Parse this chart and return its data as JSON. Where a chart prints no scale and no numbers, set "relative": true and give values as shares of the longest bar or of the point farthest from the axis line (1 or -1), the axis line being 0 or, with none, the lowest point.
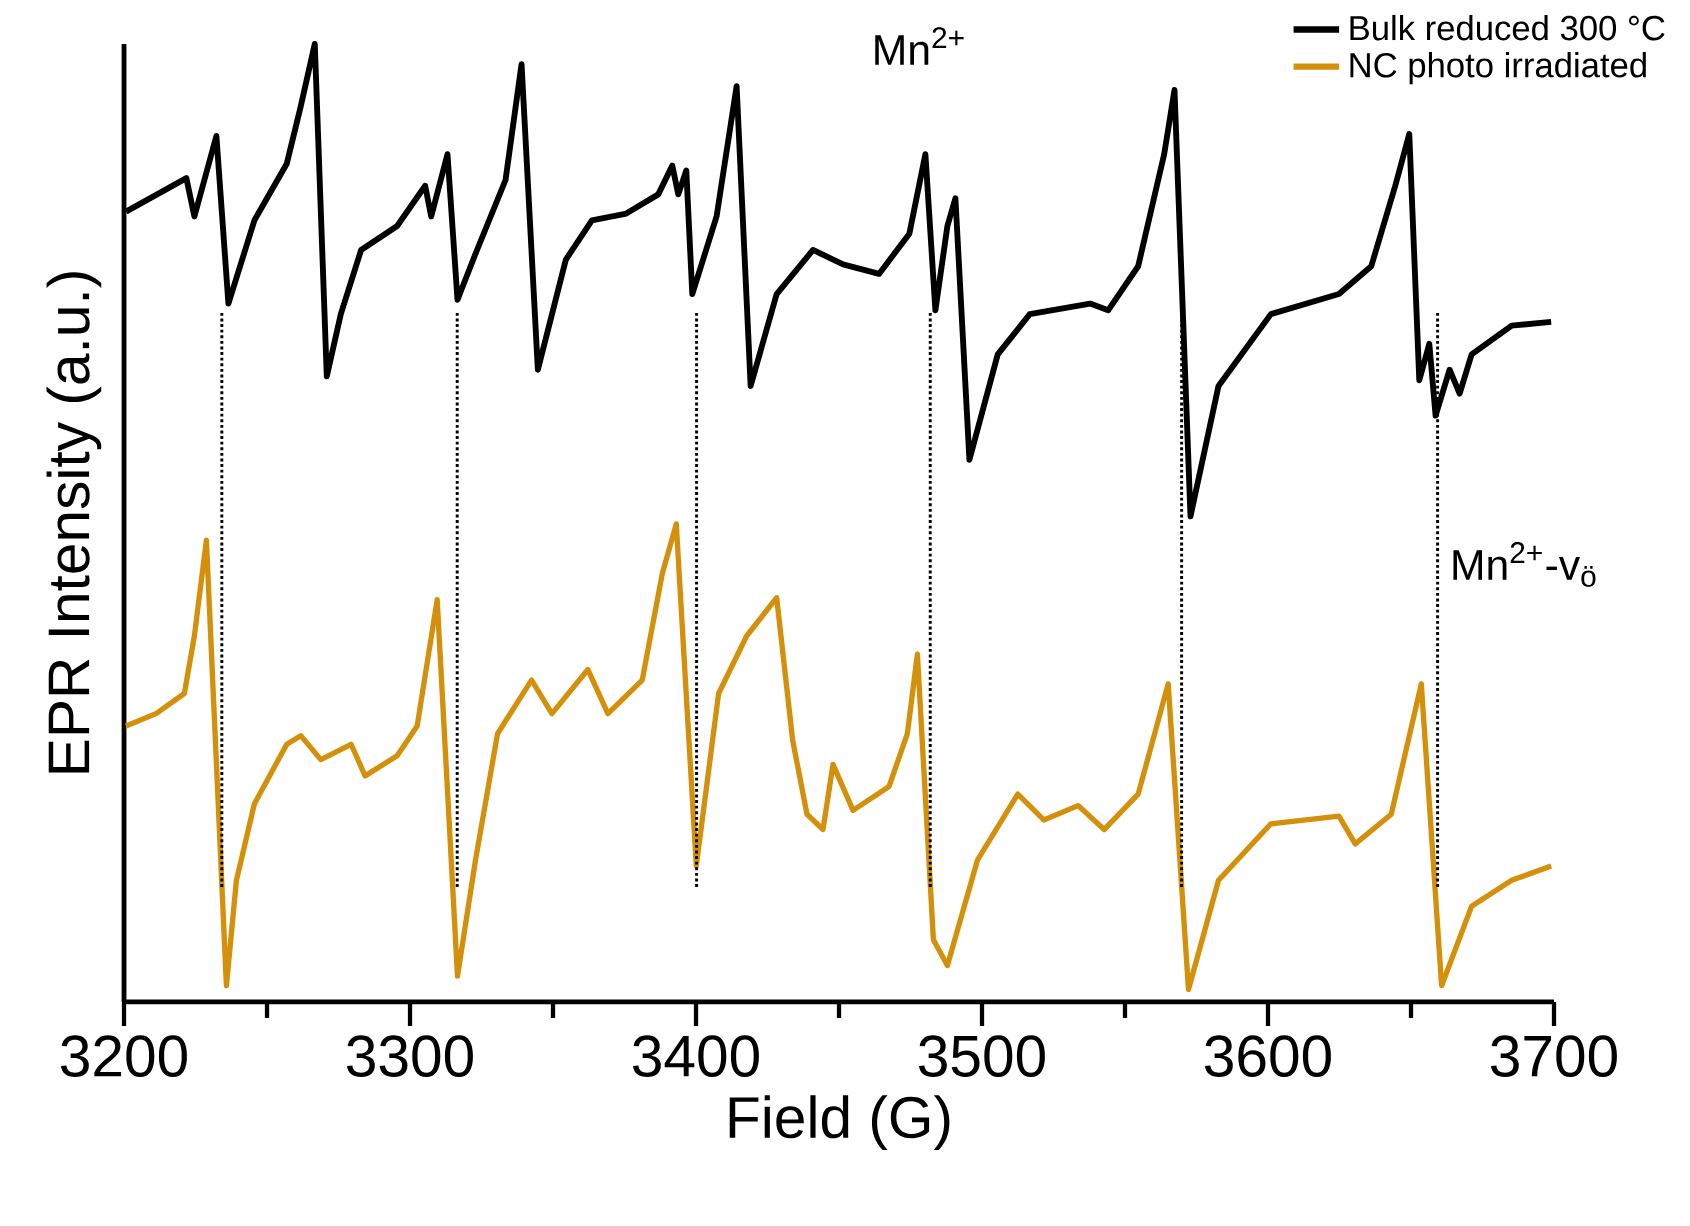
{
  "chart_data": {
    "type": "line",
    "relative": true,
    "xlabel": "Field (G)",
    "ylabel": "EPR Intensity (a.u.)",
    "xlim": [
      3200,
      3700
    ],
    "xticks": [
      3200,
      {
        "value": 3250,
        "label": null
      },
      3300,
      {
        "value": 3350,
        "label": null
      },
      3400,
      {
        "value": 3450,
        "label": null
      },
      3500,
      {
        "value": 3550,
        "label": null
      },
      3600,
      {
        "value": 3650,
        "label": null
      },
      3700
    ],
    "legend": "top right",
    "marker": "none",
    "line_style": "solid",
    "grid": false,
    "series": [
      {
        "name": "Bulk reduced 300 °C",
        "color": "#000000",
        "x": [
          3200.7,
          3221.8,
          3224.6,
          3232.3,
          3236.5,
          3245.6,
          3256.9,
          3261.8,
          3266.7,
          3270.9,
          3275.8,
          3282.9,
          3295.5,
          3305.3,
          3307.4,
          3313.1,
          3316.6,
          3322.9,
          3333.4,
          3339.0,
          3344.7,
          3354.5,
          3363.6,
          3375.6,
          3386.8,
          3391.7,
          3393.8,
          3396.6,
          3398.7,
          3407.2,
          3414.2,
          3419.1,
          3428.2,
          3440.9,
          3451.4,
          3464.0,
          3474.6,
          3480.2,
          3483.7,
          3487.9,
          3490.7,
          3495.6,
          3505.5,
          3516.7,
          3537.8,
          3544.1,
          3554.6,
          3563.7,
          3567.3,
          3572.9,
          3582.7,
          3601.0,
          3624.8,
          3636.1,
          3644.5,
          3649.4,
          3652.9,
          3656.4,
          3658.6,
          3663.5,
          3667.0,
          3671.2,
          3685.2,
          3699.0
        ],
        "values": [
          0.825,
          0.86,
          0.82,
          0.904,
          0.729,
          0.816,
          0.875,
          0.935,
          1,
          0.653,
          0.718,
          0.785,
          0.81,
          0.852,
          0.82,
          0.885,
          0.733,
          0.781,
          0.858,
          0.979,
          0.66,
          0.775,
          0.816,
          0.823,
          0.843,
          0.873,
          0.843,
          0.868,
          0.739,
          0.82,
          0.956,
          0.643,
          0.739,
          0.785,
          0.77,
          0.76,
          0.802,
          0.885,
          0.722,
          0.81,
          0.839,
          0.566,
          0.676,
          0.718,
          0.729,
          0.722,
          0.768,
          0.885,
          0.952,
          0.507,
          0.643,
          0.718,
          0.739,
          0.768,
          0.852,
          0.906,
          0.649,
          0.687,
          0.612,
          0.66,
          0.635,
          0.676,
          0.706,
          0.71
        ]
      },
      {
        "name": "NC photo irradiated",
        "color": "#d4900a",
        "x": [
          3200.7,
          3211.2,
          3221.1,
          3224.6,
          3228.8,
          3235.8,
          3239.3,
          3245.6,
          3256.9,
          3261.8,
          3268.8,
          3279.4,
          3284.3,
          3295.5,
          3302.5,
          3309.5,
          3316.6,
          3322.9,
          3330.6,
          3342.5,
          3349.6,
          3362.2,
          3369.2,
          3381.2,
          3388.2,
          3393.1,
          3400.1,
          3407.9,
          3417.7,
          3428.2,
          3433.8,
          3438.8,
          3444.4,
          3447.9,
          3454.9,
          3467.5,
          3473.9,
          3477.4,
          3483.0,
          3487.9,
          3498.4,
          3512.5,
          3521.6,
          3533.6,
          3542.7,
          3554.6,
          3565.1,
          3572.2,
          3582.7,
          3601.0,
          3624.8,
          3630.5,
          3643.1,
          3653.6,
          3660.7,
          3671.2,
          3685.2,
          3699.0
        ],
        "values": [
          0.288,
          0.301,
          0.322,
          0.382,
          0.482,
          0.017,
          0.127,
          0.207,
          0.269,
          0.278,
          0.253,
          0.269,
          0.236,
          0.257,
          0.288,
          0.42,
          0.027,
          0.148,
          0.28,
          0.336,
          0.301,
          0.347,
          0.301,
          0.336,
          0.447,
          0.499,
          0.142,
          0.322,
          0.382,
          0.422,
          0.273,
          0.196,
          0.18,
          0.248,
          0.2,
          0.225,
          0.28,
          0.363,
          0.065,
          0.038,
          0.148,
          0.217,
          0.19,
          0.205,
          0.18,
          0.217,
          0.332,
          0.013,
          0.127,
          0.186,
          0.194,
          0.165,
          0.196,
          0.332,
          0.017,
          0.1,
          0.127,
          0.142
        ]
      }
    ],
    "ref_lines": [
      {
        "axis": "x",
        "value": 3234.2,
        "line_style": "dotted",
        "color": "#000000"
      },
      {
        "axis": "x",
        "value": 3316.5,
        "line_style": "dotted",
        "color": "#000000"
      },
      {
        "axis": "x",
        "value": 3400.2,
        "line_style": "dotted",
        "color": "#000000"
      },
      {
        "axis": "x",
        "value": 3481.9,
        "line_style": "dotted",
        "color": "#000000"
      },
      {
        "axis": "x",
        "value": 3569.8,
        "line_style": "dotted",
        "color": "#000000"
      },
      {
        "axis": "x",
        "value": 3659.3,
        "line_style": "dotted",
        "color": "#000000"
      }
    ],
    "annotations": [
      "Mn$^{2+}$",
      "Mn$^{2+}$-v$_{ö}$"
    ]
  }
}
